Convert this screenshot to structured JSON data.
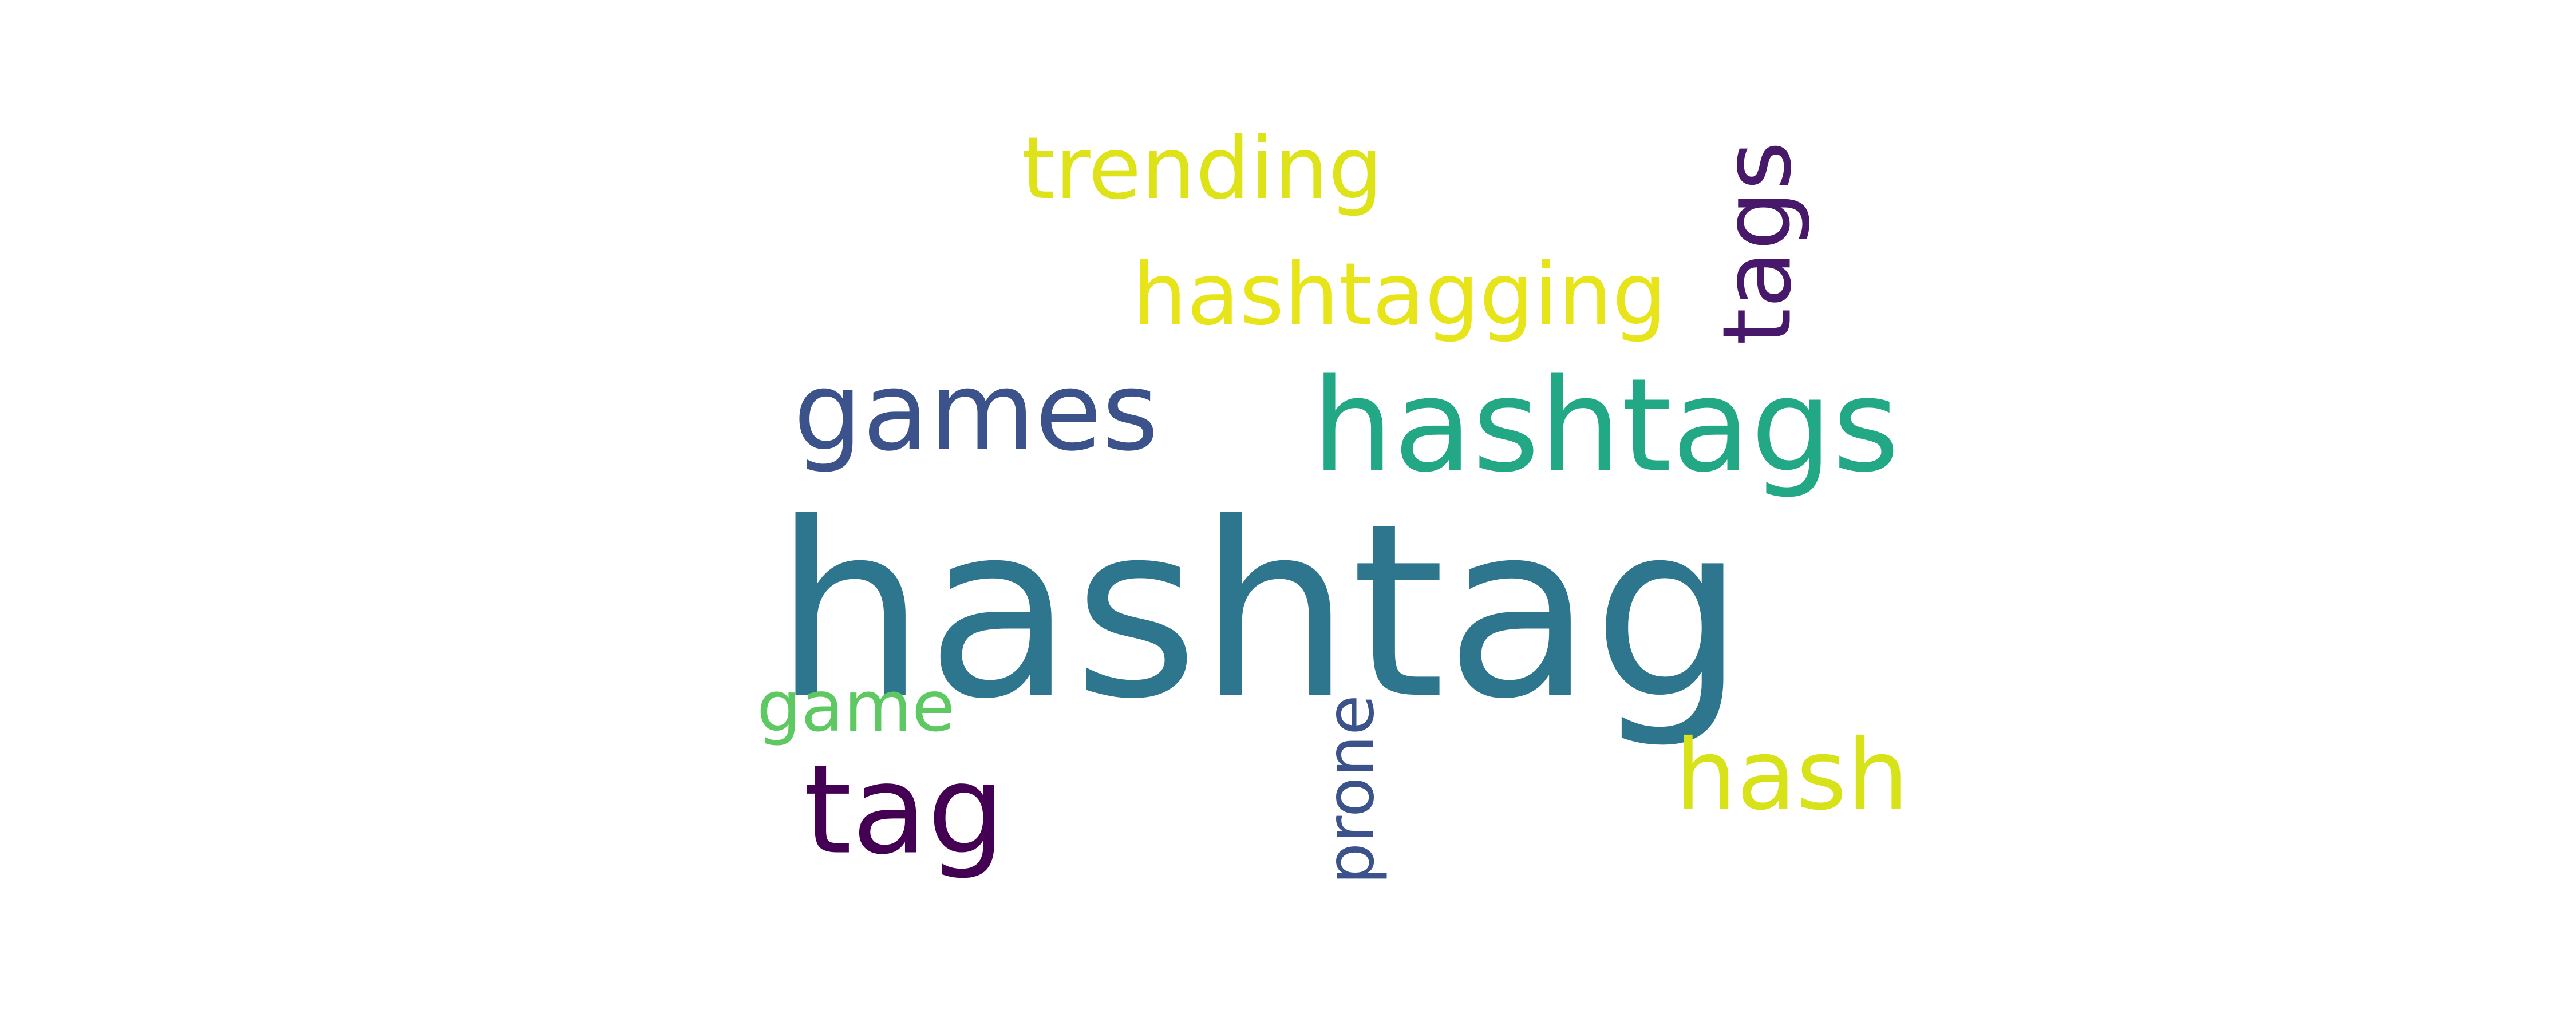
{
  "words": {
    "hashtag": {
      "text": "hashtag",
      "color": "#2e768e"
    },
    "hashtags": {
      "text": "hashtags",
      "color": "#22a884"
    },
    "games": {
      "text": "games",
      "color": "#3b528b"
    },
    "tag": {
      "text": "tag",
      "color": "#440154"
    },
    "hashtagging": {
      "text": "hashtagging",
      "color": "#e7e419"
    },
    "trending": {
      "text": "trending",
      "color": "#dde318"
    },
    "tags": {
      "text": "tags",
      "color": "#48186a"
    },
    "hash": {
      "text": "hash",
      "color": "#d8e219"
    },
    "prone": {
      "text": "prone",
      "color": "#3b528b"
    },
    "game": {
      "text": "game",
      "color": "#5ec962"
    }
  }
}
